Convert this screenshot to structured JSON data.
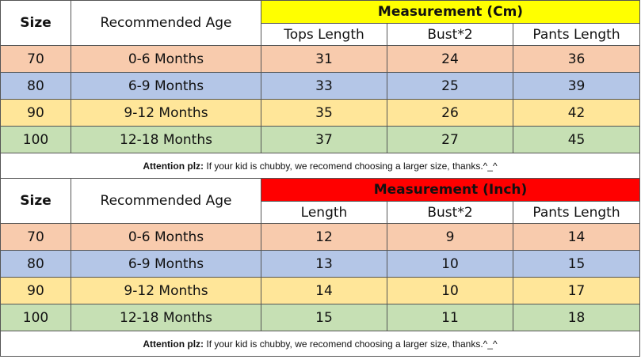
{
  "tables": [
    {
      "size_header": "Size",
      "age_header": "Recommended Age",
      "measurement_title": "Measurement (Cm)",
      "measurement_color": "#ffff00",
      "columns": [
        "Tops Length",
        "Bust*2",
        "Pants Length"
      ],
      "rows": [
        {
          "size": "70",
          "age": "0-6 Months",
          "v1": "31",
          "v2": "24",
          "v3": "36"
        },
        {
          "size": "80",
          "age": "6-9 Months",
          "v1": "33",
          "v2": "25",
          "v3": "39"
        },
        {
          "size": "90",
          "age": "9-12 Months",
          "v1": "35",
          "v2": "26",
          "v3": "42"
        },
        {
          "size": "100",
          "age": "12-18 Months",
          "v1": "37",
          "v2": "27",
          "v3": "45"
        }
      ],
      "note_label": "Attention plz:",
      "note_text": " If your kid is chubby, we recomend choosing a larger size, thanks.^_^"
    },
    {
      "size_header": "Size",
      "age_header": "Recommended Age",
      "measurement_title": "Measurement (Inch)",
      "measurement_color": "#ff0000",
      "columns": [
        "Length",
        "Bust*2",
        "Pants Length"
      ],
      "rows": [
        {
          "size": "70",
          "age": "0-6 Months",
          "v1": "12",
          "v2": "9",
          "v3": "14"
        },
        {
          "size": "80",
          "age": "6-9 Months",
          "v1": "13",
          "v2": "10",
          "v3": "15"
        },
        {
          "size": "90",
          "age": "9-12 Months",
          "v1": "14",
          "v2": "10",
          "v3": "17"
        },
        {
          "size": "100",
          "age": "12-18 Months",
          "v1": "15",
          "v2": "11",
          "v3": "18"
        }
      ],
      "note_label": "Attention plz:",
      "note_text": " If your kid is chubby, we recomend choosing a larger size, thanks.^_^"
    }
  ],
  "row_colors": [
    "#f8cbad",
    "#b4c6e7",
    "#ffe699",
    "#c6e0b4"
  ]
}
